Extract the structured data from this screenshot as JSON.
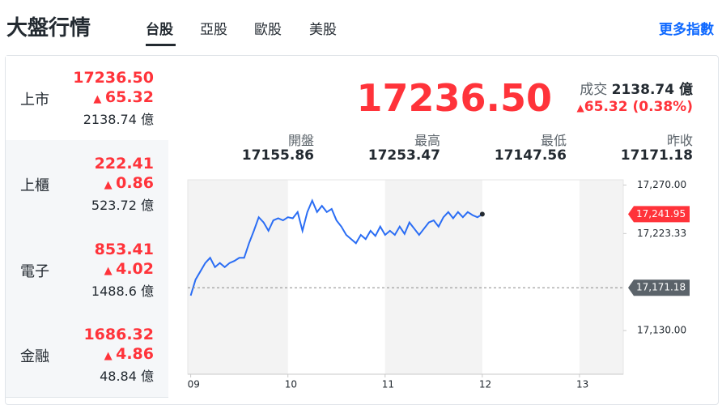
{
  "header": {
    "title": "大盤行情",
    "tabs": [
      "台股",
      "亞股",
      "歐股",
      "美股"
    ],
    "active_tab": 0,
    "more_link": "更多指數"
  },
  "markets": [
    {
      "name": "上市",
      "price": "17236.50",
      "change": "65.32",
      "volume": "2138.74 億"
    },
    {
      "name": "上櫃",
      "price": "222.41",
      "change": "0.86",
      "volume": "523.72 億"
    },
    {
      "name": "電子",
      "price": "853.41",
      "change": "4.02",
      "volume": "1488.6 億"
    },
    {
      "name": "金融",
      "price": "1686.32",
      "change": "4.86",
      "volume": "48.84 億"
    }
  ],
  "summary": {
    "price": "17236.50",
    "volume_label": "成交",
    "volume": "2138.74 億",
    "change": "65.32 (0.38%)"
  },
  "stats": [
    {
      "label": "開盤",
      "value": "17155.86"
    },
    {
      "label": "最高",
      "value": "17253.47"
    },
    {
      "label": "最低",
      "value": "17147.56"
    },
    {
      "label": "昨收",
      "value": "17171.18"
    }
  ],
  "chart_data": {
    "type": "line",
    "color": "#2a6df4",
    "x": [
      9.0,
      9.05,
      9.1,
      9.15,
      9.2,
      9.25,
      9.3,
      9.35,
      9.4,
      9.45,
      9.5,
      9.55,
      9.6,
      9.65,
      9.7,
      9.75,
      9.8,
      9.85,
      9.9,
      9.95,
      10.0,
      10.05,
      10.1,
      10.15,
      10.2,
      10.25,
      10.3,
      10.35,
      10.4,
      10.45,
      10.5,
      10.55,
      10.6,
      10.65,
      10.7,
      10.75,
      10.8,
      10.85,
      10.9,
      10.95,
      11.0,
      11.05,
      11.1,
      11.15,
      11.2,
      11.25,
      11.3,
      11.35,
      11.4,
      11.45,
      11.5,
      11.55,
      11.6,
      11.65,
      11.7,
      11.75,
      11.8,
      11.85,
      11.9,
      11.95,
      12.0
    ],
    "values": [
      17163.6,
      17179,
      17187,
      17195,
      17200,
      17191,
      17195,
      17191,
      17195,
      17197,
      17200,
      17200,
      17214,
      17226,
      17239,
      17234,
      17226,
      17236,
      17238,
      17236,
      17239,
      17238,
      17244,
      17226,
      17244,
      17255,
      17244,
      17250,
      17244,
      17247,
      17236,
      17230,
      17222,
      17218,
      17214,
      17222,
      17218,
      17226,
      17221,
      17230,
      17222,
      17226,
      17222,
      17230,
      17223,
      17234,
      17228,
      17222,
      17228,
      17234,
      17236,
      17230,
      17239,
      17244,
      17238,
      17244,
      17239,
      17244,
      17241,
      17239,
      17241.95
    ],
    "xlim": [
      8.97,
      13.45
    ],
    "xticks": [
      {
        "value": 9,
        "label": "09"
      },
      10,
      11,
      12,
      13
    ],
    "ylim": [
      17088,
      17275
    ],
    "yticks": [
      {
        "value": 17270,
        "label": "17,270.00"
      },
      {
        "value": 17223.33,
        "label": "17,223.33"
      },
      {
        "value": 17130,
        "label": "17,130.00"
      }
    ],
    "markers": [
      {
        "value": 17241.95,
        "label": "17,241.95",
        "color": "#ff333a",
        "dashed": false
      },
      {
        "value": 17171.18,
        "label": "17,171.18",
        "color": "#5b636a",
        "dashed": true
      }
    ]
  }
}
